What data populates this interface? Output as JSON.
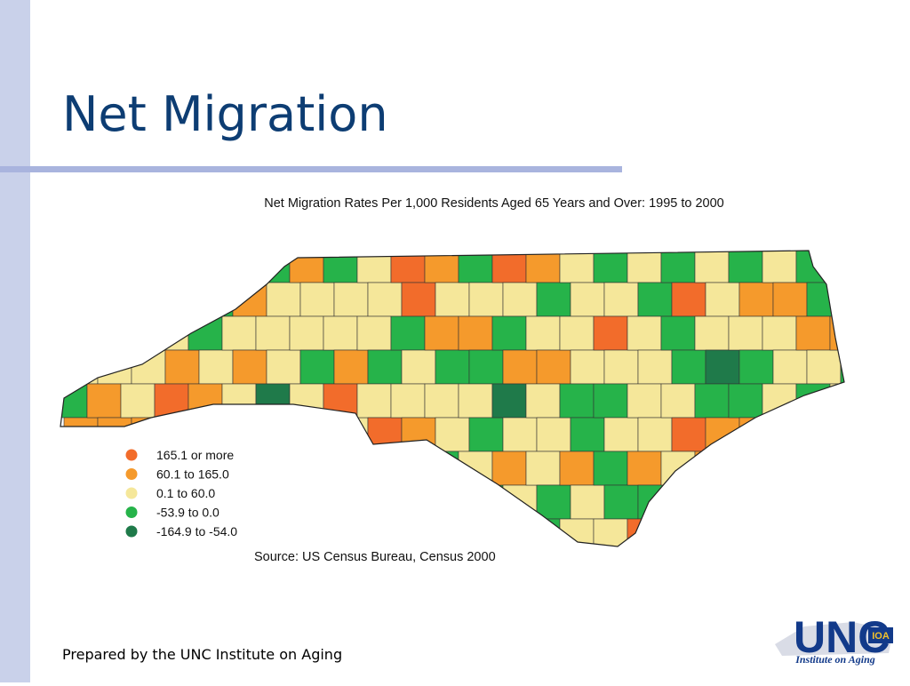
{
  "header": {
    "title": "Net Migration"
  },
  "map": {
    "title": "Net Migration Rates Per 1,000 Residents Aged 65 Years and Over: 1995 to 2000",
    "legend": [
      {
        "label": "165.1 or more",
        "color": "#f26c2b"
      },
      {
        "label": "60.1 to 165.0",
        "color": "#f59a2c"
      },
      {
        "label": "0.1 to 60.0",
        "color": "#f5e79a"
      },
      {
        "label": "-53.9 to 0.0",
        "color": "#26b34a"
      },
      {
        "label": "-164.9 to -54.0",
        "color": "#1f7a4a"
      }
    ],
    "source": "Source: US Census Bureau, Census 2000"
  },
  "footer": {
    "text": "Prepared by the UNC Institute on Aging"
  },
  "logo": {
    "text": "UNC",
    "badge": "IOA",
    "subtitle": "Institute on Aging"
  }
}
